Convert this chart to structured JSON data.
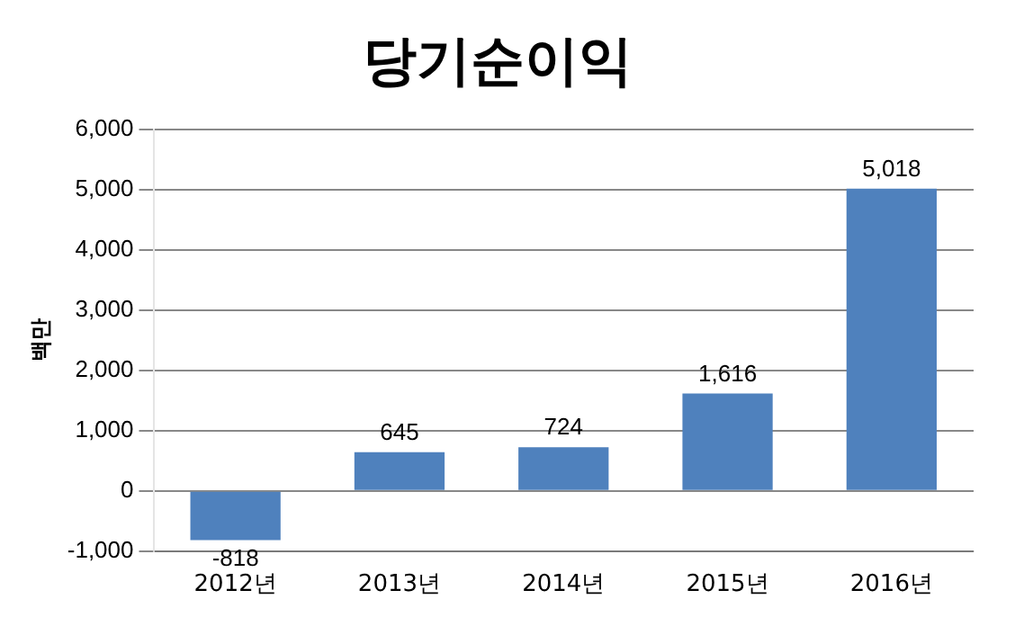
{
  "chart_data": {
    "type": "bar",
    "title": "당기순이익",
    "ylabel": "백만",
    "categories": [
      "2012년",
      "2013년",
      "2014년",
      "2015년",
      "2016년"
    ],
    "values": [
      -818,
      645,
      724,
      1616,
      5018
    ],
    "value_labels": [
      "-818",
      "645",
      "724",
      "1,616",
      "5,018"
    ],
    "color": "#4f81bd",
    "ylim": [
      -1000,
      6000
    ],
    "yticks": [
      {
        "value": -1000,
        "label": "-1,000"
      },
      0,
      {
        "value": 1000,
        "label": "1,000"
      },
      {
        "value": 2000,
        "label": "2,000"
      },
      {
        "value": 3000,
        "label": "3,000"
      },
      {
        "value": 4000,
        "label": "4,000"
      },
      {
        "value": 5000,
        "label": "5,000"
      },
      {
        "value": 6000,
        "label": "6,000"
      }
    ],
    "grid": "y",
    "legend": false
  }
}
